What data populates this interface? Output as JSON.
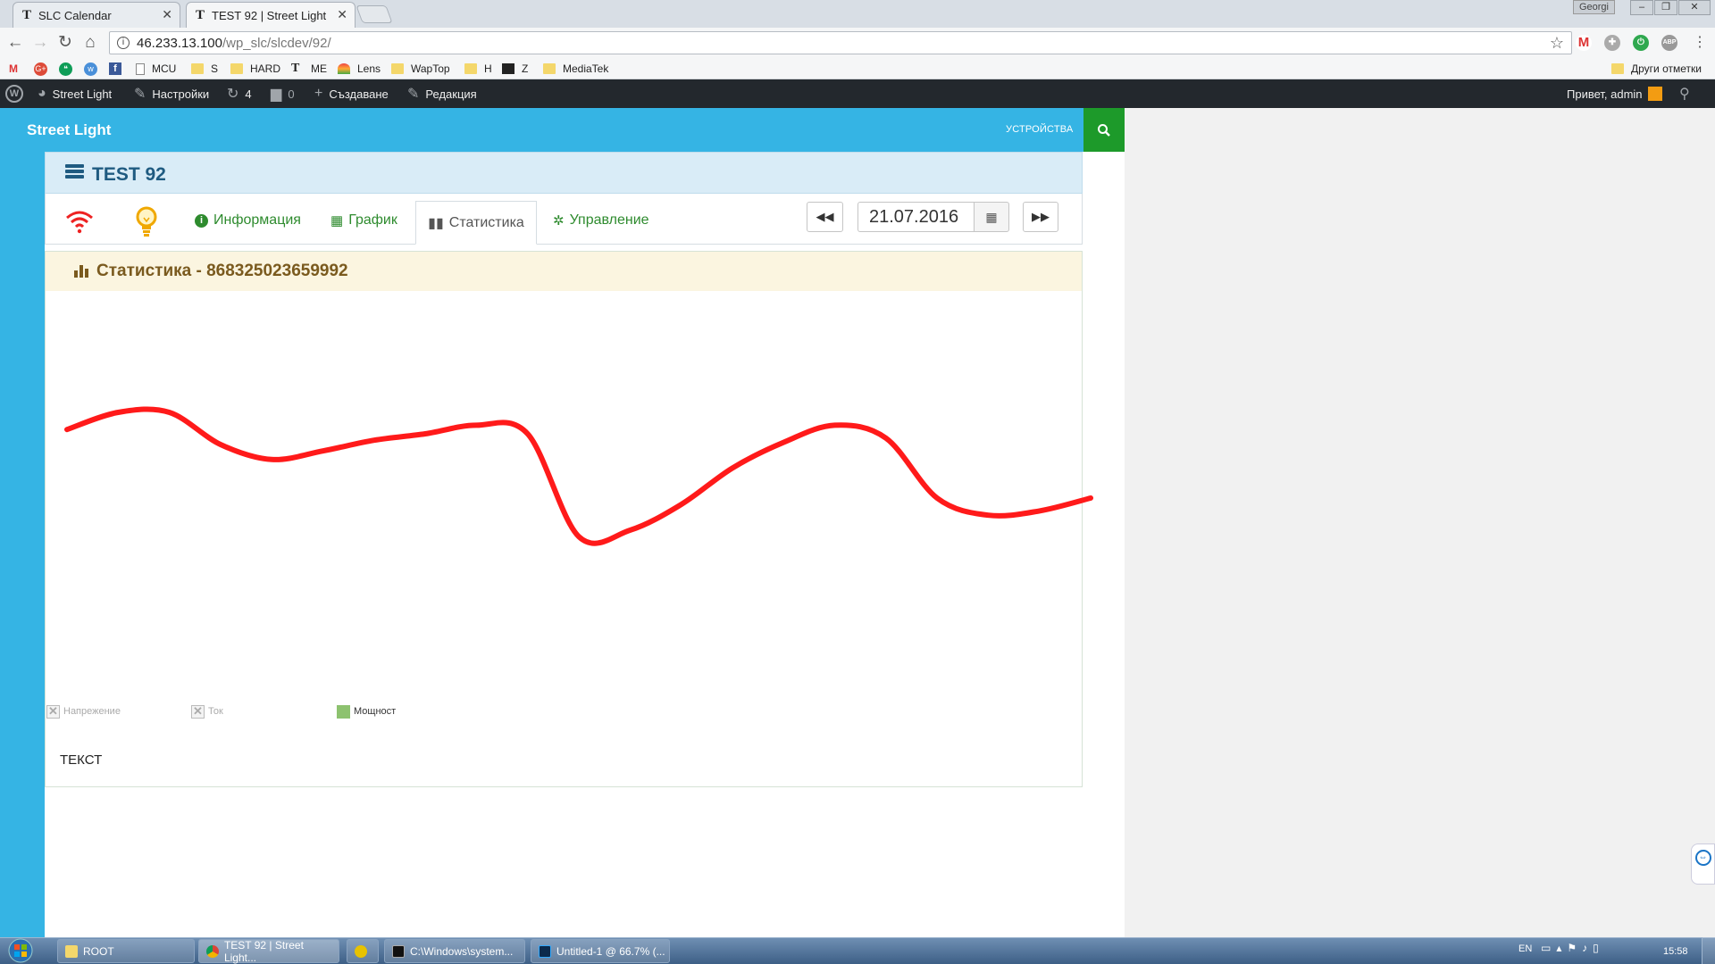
{
  "browser": {
    "tabs": [
      {
        "favicon": "T",
        "title": "SLC Calendar"
      },
      {
        "favicon": "T",
        "title": "TEST 92 | Street Light"
      }
    ],
    "window_user": "Georgi",
    "url_host": "46.233.13.100",
    "url_path": "/wp_slc/slcdev/92/",
    "bookmarks": [
      "MCU",
      "S",
      "HARD",
      "ME",
      "Lens",
      "WapTop",
      "H",
      "Z",
      "MediaTek"
    ],
    "other_bookmarks": "Други отметки"
  },
  "adminbar": {
    "site": "Street Light",
    "customize": "Настройки",
    "updates_count": "4",
    "comments_count": "0",
    "new": "Създаване",
    "edit": "Редакция",
    "greeting": "Привет, admin"
  },
  "site": {
    "title": "Street Light",
    "nav_devices": "УСТРОЙСТВА",
    "accent": "#35b4e4",
    "search_bg": "#1d9a2a"
  },
  "device": {
    "title": "TEST 92",
    "tabs": {
      "info": "Информация",
      "schedule": "График",
      "stats": "Статистика",
      "control": "Управление"
    },
    "date": "21.07.2016"
  },
  "panel": {
    "title": "Статистика - 868325023659992",
    "legend": [
      {
        "label": "Напрежение",
        "enabled": false
      },
      {
        "label": "Ток",
        "enabled": false
      },
      {
        "label": "Мощност",
        "enabled": true,
        "color": "#8dc26f"
      }
    ],
    "text": "ТЕКСТ"
  },
  "chart_data": {
    "type": "line",
    "x": [
      0,
      5,
      10,
      15,
      20,
      25,
      30,
      35,
      40,
      45,
      50,
      55,
      60,
      65,
      70,
      75,
      80,
      85,
      90,
      95,
      100
    ],
    "series": [
      {
        "color": "#ff1a1a",
        "values": [
          0.62,
          0.7,
          0.7,
          0.55,
          0.48,
          0.52,
          0.57,
          0.6,
          0.64,
          0.6,
          0.12,
          0.15,
          0.27,
          0.44,
          0.56,
          0.64,
          0.58,
          0.3,
          0.22,
          0.24,
          0.3
        ]
      }
    ],
    "ylim": [
      0,
      1
    ]
  },
  "taskbar": {
    "items": [
      "ROOT",
      "TEST 92 | Street Light...",
      "C:\\Windows\\system...",
      "Untitled-1 @ 66.7% (..."
    ],
    "lang": "EN",
    "time": "15:58"
  }
}
